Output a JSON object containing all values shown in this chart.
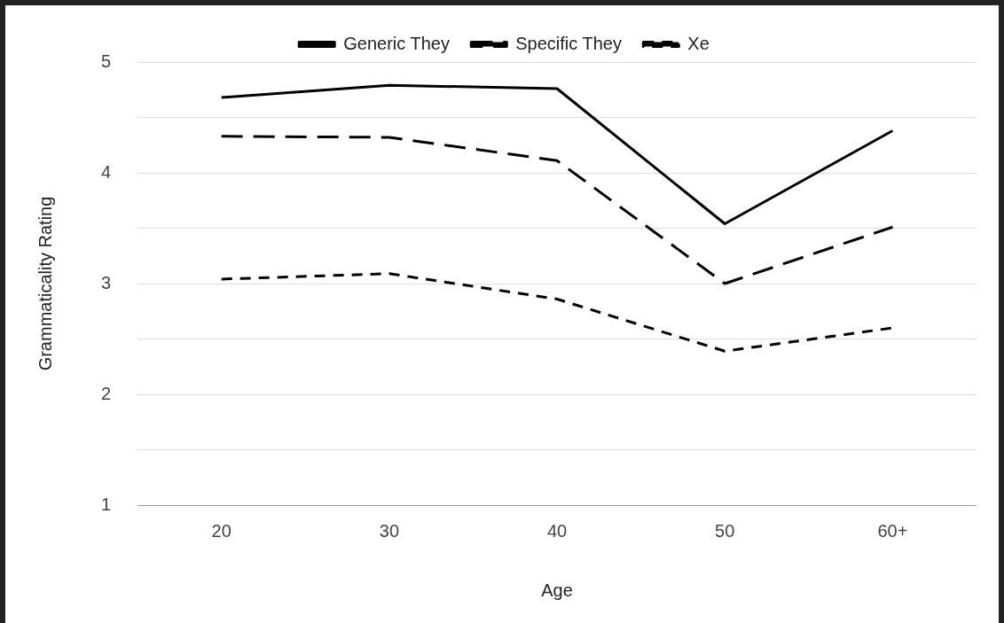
{
  "chart_data": {
    "type": "line",
    "xlabel": "Age",
    "ylabel": "Grammaticality Rating",
    "categories": [
      "20",
      "30",
      "40",
      "50",
      "60+"
    ],
    "series": [
      {
        "name": "Generic They",
        "color": "#000000",
        "line_style": "solid",
        "values": [
          4.68,
          4.79,
          4.76,
          3.54,
          4.38
        ]
      },
      {
        "name": "Specific They",
        "color": "#000000",
        "line_style": "dashed",
        "values": [
          4.33,
          4.32,
          4.11,
          3.0,
          3.51
        ]
      },
      {
        "name": "Xe",
        "color": "#000000",
        "line_style": "dashed",
        "values": [
          3.04,
          3.09,
          2.86,
          2.39,
          2.6
        ]
      }
    ],
    "ylim": [
      1,
      5
    ],
    "yticks": [
      1,
      {
        "value": 1.5,
        "label": null
      },
      2,
      {
        "value": 2.5,
        "label": null
      },
      3,
      {
        "value": 3.5,
        "label": null
      },
      4,
      {
        "value": 4.5,
        "label": null
      },
      5
    ],
    "grid": "y",
    "legend": "top",
    "marker": "none"
  }
}
